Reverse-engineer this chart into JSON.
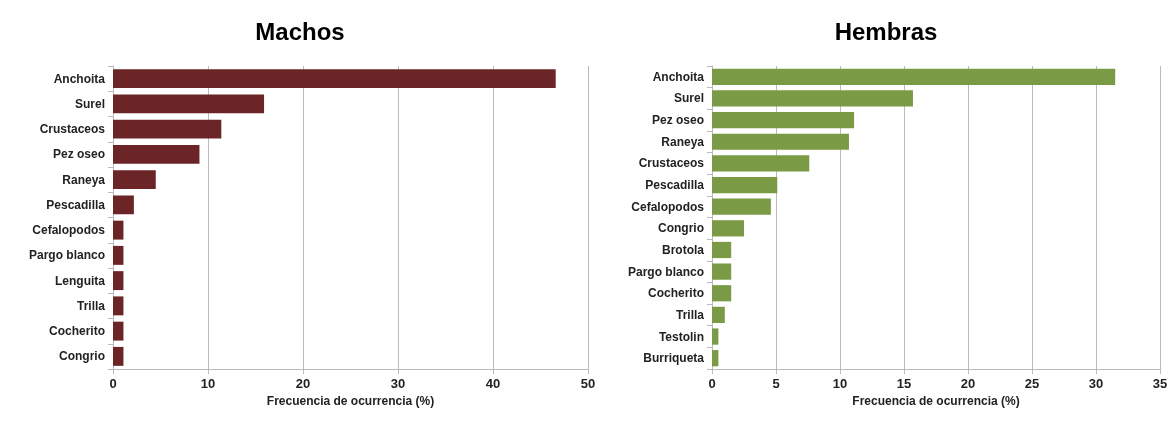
{
  "chart_data": [
    {
      "type": "bar",
      "orientation": "horizontal",
      "title": "Machos",
      "xlabel": "Frecuencia de ocurrencia (%)",
      "categories": [
        "Anchoita",
        "Surel",
        "Crustaceos",
        "Pez oseo",
        "Raneya",
        "Pescadilla",
        "Cefalopodos",
        "Pargo blanco",
        "Lenguita",
        "Trilla",
        "Cocherito",
        "Congrio"
      ],
      "values": [
        46.6,
        15.9,
        11.4,
        9.1,
        4.5,
        2.2,
        1.1,
        1.1,
        1.1,
        1.1,
        1.1,
        1.1
      ],
      "color": "#6b2526",
      "xlim": [
        0,
        50
      ],
      "xticks": [
        0,
        10,
        20,
        30,
        40,
        50
      ],
      "grid": "x"
    },
    {
      "type": "bar",
      "orientation": "horizontal",
      "title": "Hembras",
      "xlabel": "Frecuencia de ocurrencia (%)",
      "categories": [
        "Anchoita",
        "Surel",
        "Pez oseo",
        "Raneya",
        "Crustaceos",
        "Pescadilla",
        "Cefalopodos",
        "Congrio",
        "Brotola",
        "Pargo blanco",
        "Cocherito",
        "Trilla",
        "Testolin",
        "Burriqueta"
      ],
      "values": [
        31.5,
        15.7,
        11.1,
        10.7,
        7.6,
        5.1,
        4.6,
        2.5,
        1.5,
        1.5,
        1.5,
        1.0,
        0.5,
        0.5
      ],
      "color": "#7a9a45",
      "xlim": [
        0,
        35
      ],
      "xticks": [
        0,
        5,
        10,
        15,
        20,
        25,
        30,
        35
      ],
      "grid": "x"
    }
  ]
}
